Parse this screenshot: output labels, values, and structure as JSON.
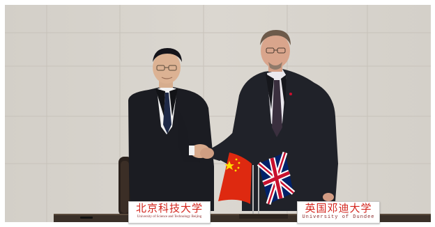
{
  "nameplates": {
    "left": {
      "title": "北京科技大学",
      "subtitle": "University of Science and Technology Beijing"
    },
    "right": {
      "title": "英国邓迪大学",
      "subtitle": "University of Dundee"
    }
  },
  "colors": {
    "wall": "#d9d5ce",
    "suit": "#1c1e24",
    "table": "#3a3028",
    "china_flag_red": "#de2910",
    "china_flag_star": "#ffde00",
    "uk_flag_blue": "#012169",
    "uk_flag_red": "#c8102e",
    "nameplate_text": "#d3241c"
  }
}
